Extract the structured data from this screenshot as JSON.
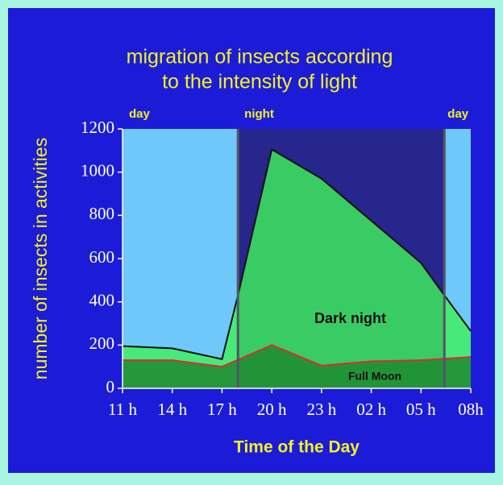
{
  "chart_data": {
    "type": "area",
    "title": [
      "migration of insects according",
      "to the intensity of light"
    ],
    "ylabel": "number of insects in activities",
    "xlabel": "Time of the Day",
    "xlim": [
      0,
      7
    ],
    "xticks": [
      {
        "value": 0,
        "label": "11 h"
      },
      {
        "value": 1,
        "label": "14 h"
      },
      {
        "value": 2,
        "label": "17 h"
      },
      {
        "value": 3,
        "label": "20 h"
      },
      {
        "value": 4,
        "label": "23 h"
      },
      {
        "value": 5,
        "label": "02 h"
      },
      {
        "value": 6,
        "label": "05 h"
      },
      {
        "value": 7,
        "label": "08h"
      }
    ],
    "ylim": [
      0,
      1200
    ],
    "yticks": [
      0,
      200,
      400,
      600,
      800,
      1000,
      1200
    ],
    "periods": [
      {
        "label": "day",
        "start": 0,
        "end": 2.32,
        "color": "#6ec8fa"
      },
      {
        "label": "night",
        "start": 2.32,
        "end": 6.47,
        "color": "#26268c"
      },
      {
        "label": "day",
        "start": 6.47,
        "end": 7,
        "color": "#6ec8fa"
      }
    ],
    "series": [
      {
        "name": "Dark night",
        "color": "#3ef25c",
        "line_color": "#111111",
        "x": [
          0,
          1,
          2,
          2.32,
          3,
          4,
          6,
          6.47,
          7
        ],
        "values": [
          195,
          185,
          135,
          430,
          1105,
          970,
          580,
          430,
          265
        ]
      },
      {
        "name": "Full Moon",
        "color": "#1f8a30",
        "line_color": "#e0283a",
        "x": [
          0,
          1,
          2,
          3,
          4,
          5,
          6,
          7
        ],
        "values": [
          130,
          130,
          100,
          200,
          105,
          125,
          130,
          145
        ]
      }
    ]
  }
}
